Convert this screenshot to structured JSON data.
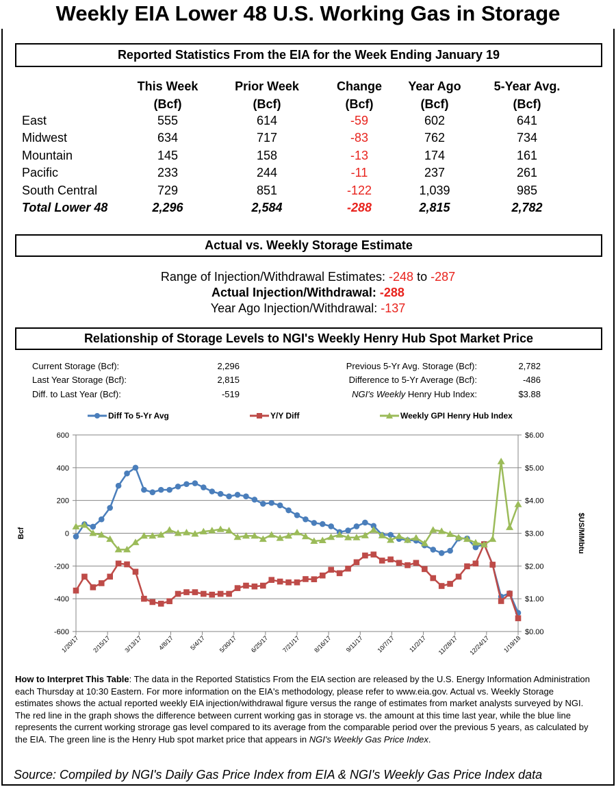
{
  "title": "Weekly EIA Lower 48 U.S. Working Gas in Storage",
  "section1": {
    "heading": "Reported Statistics From the EIA for the Week Ending January 19",
    "columns": [
      {
        "line1": "This Week",
        "line2": "(Bcf)"
      },
      {
        "line1": "Prior Week",
        "line2": "(Bcf)"
      },
      {
        "line1": "Change",
        "line2": "(Bcf)"
      },
      {
        "line1": "Year Ago",
        "line2": "(Bcf)"
      },
      {
        "line1": "5-Year Avg.",
        "line2": "(Bcf)"
      }
    ],
    "rows": [
      {
        "region": "East",
        "values": [
          "555",
          "614",
          "-59",
          "602",
          "641"
        ]
      },
      {
        "region": "Midwest",
        "values": [
          "634",
          "717",
          "-83",
          "762",
          "734"
        ]
      },
      {
        "region": "Mountain",
        "values": [
          "145",
          "158",
          "-13",
          "174",
          "161"
        ]
      },
      {
        "region": "Pacific",
        "values": [
          "233",
          "244",
          "-11",
          "237",
          "261"
        ]
      },
      {
        "region": "South Central",
        "values": [
          "729",
          "851",
          "-122",
          "1,039",
          "985"
        ]
      },
      {
        "region": "Total Lower 48",
        "values": [
          "2,296",
          "2,584",
          "-288",
          "2,815",
          "2,782"
        ]
      }
    ],
    "negative_color": "#e8231d"
  },
  "section2": {
    "heading": "Actual vs. Weekly Storage Estimate",
    "range_label": "Range of Injection/Withdrawal Estimates: ",
    "range_low": "-248",
    "range_to": " to ",
    "range_high": "-287",
    "actual_label": "Actual Injection/Withdrawal: ",
    "actual_value": "-288",
    "year_ago_label": "Year Ago Injection/Withdrawal: ",
    "year_ago_value": "-137"
  },
  "section3": {
    "heading": "Relationship of Storage Levels to NGI's Weekly Henry Hub Spot Market Price",
    "stats_left": [
      {
        "label": "Current Storage (Bcf):",
        "value": "2,296"
      },
      {
        "label": "Last Year Storage (Bcf):",
        "value": "2,815"
      },
      {
        "label": "Diff. to Last Year (Bcf):",
        "value": "-519"
      }
    ],
    "stats_right": [
      {
        "label": "Previous 5-Yr Avg. Storage (Bcf):",
        "value": "2,782"
      },
      {
        "label": "Difference to 5-Yr Average (Bcf):",
        "value": "-486"
      },
      {
        "label_italic": "NGI's Weekly",
        "label": " Henry Hub Index:",
        "value": "$3.88"
      }
    ]
  },
  "chart_data": {
    "type": "line",
    "legend_placement": "top",
    "grid": true,
    "xlabel": "",
    "ylabel": "Bcf",
    "y2label": "$US/MMbtu",
    "ylim": [
      -600,
      600
    ],
    "y_ticks": [
      "600",
      "400",
      "200",
      "0",
      "-200",
      "-400",
      "-600"
    ],
    "y2lim": [
      0,
      6
    ],
    "y2_ticks": [
      "$6.00",
      "$5.00",
      "$4.00",
      "$3.00",
      "$2.00",
      "$1.00",
      "$0.00"
    ],
    "x_tick_labels": [
      "1/20/17",
      "2/15/17",
      "3/13/17",
      "4/8/17",
      "5/4/17",
      "5/30/17",
      "6/25/17",
      "7/21/17",
      "8/16/17",
      "9/11/17",
      "10/7/17",
      "11/2/17",
      "11/28/17",
      "12/24/17",
      "1/19/18"
    ],
    "x_tick_dates": [
      "2017-01-20",
      "2017-02-15",
      "2017-03-13",
      "2017-04-08",
      "2017-05-04",
      "2017-05-30",
      "2017-06-25",
      "2017-07-21",
      "2017-08-16",
      "2017-09-11",
      "2017-10-07",
      "2017-11-02",
      "2017-11-28",
      "2017-12-24",
      "2018-01-19"
    ],
    "x": [
      "2017-01-20",
      "2017-01-27",
      "2017-02-03",
      "2017-02-10",
      "2017-02-17",
      "2017-02-24",
      "2017-03-03",
      "2017-03-10",
      "2017-03-17",
      "2017-03-24",
      "2017-03-31",
      "2017-04-07",
      "2017-04-14",
      "2017-04-21",
      "2017-04-28",
      "2017-05-05",
      "2017-05-12",
      "2017-05-19",
      "2017-05-26",
      "2017-06-02",
      "2017-06-09",
      "2017-06-16",
      "2017-06-23",
      "2017-06-30",
      "2017-07-07",
      "2017-07-14",
      "2017-07-21",
      "2017-07-28",
      "2017-08-04",
      "2017-08-11",
      "2017-08-18",
      "2017-08-25",
      "2017-09-01",
      "2017-09-08",
      "2017-09-15",
      "2017-09-22",
      "2017-09-29",
      "2017-10-06",
      "2017-10-13",
      "2017-10-20",
      "2017-10-27",
      "2017-11-03",
      "2017-11-10",
      "2017-11-17",
      "2017-11-24",
      "2017-12-01",
      "2017-12-08",
      "2017-12-15",
      "2017-12-22",
      "2017-12-29",
      "2018-01-05",
      "2018-01-12",
      "2018-01-19"
    ],
    "series": [
      {
        "name": "Diff To 5-Yr Avg",
        "axis": "left",
        "color": "#4a7ebb",
        "marker": "circle",
        "values": [
          -20,
          55,
          40,
          85,
          155,
          290,
          365,
          400,
          265,
          250,
          265,
          265,
          285,
          300,
          305,
          280,
          255,
          240,
          225,
          235,
          225,
          205,
          180,
          185,
          170,
          140,
          110,
          85,
          63,
          56,
          42,
          7,
          17,
          42,
          65,
          45,
          -10,
          -10,
          -35,
          -42,
          -45,
          -74,
          -100,
          -121,
          -107,
          -32,
          -32,
          -86,
          -65,
          -192,
          -387,
          -366,
          -486
        ]
      },
      {
        "name": "Y/Y Diff",
        "axis": "left",
        "color": "#be4b48",
        "marker": "square",
        "values": [
          -350,
          -265,
          -330,
          -305,
          -265,
          -185,
          -190,
          -235,
          -400,
          -420,
          -430,
          -415,
          -370,
          -360,
          -360,
          -370,
          -375,
          -370,
          -370,
          -335,
          -320,
          -325,
          -320,
          -285,
          -295,
          -300,
          -300,
          -280,
          -281,
          -258,
          -223,
          -244,
          -216,
          -177,
          -136,
          -130,
          -167,
          -160,
          -181,
          -195,
          -181,
          -219,
          -274,
          -322,
          -309,
          -265,
          -202,
          -185,
          -67,
          -192,
          -414,
          -369,
          -519
        ]
      },
      {
        "name": "Weekly GPI Henry Hub Index",
        "axis": "right",
        "color": "#9bbb59",
        "marker": "triangle",
        "values": [
          3.2,
          3.25,
          3.0,
          2.95,
          2.82,
          2.5,
          2.5,
          2.72,
          2.92,
          2.92,
          2.95,
          3.1,
          3.0,
          3.02,
          2.98,
          3.05,
          3.08,
          3.12,
          3.08,
          2.88,
          2.92,
          2.92,
          2.82,
          2.95,
          2.85,
          2.92,
          3.02,
          2.9,
          2.76,
          2.78,
          2.88,
          2.95,
          2.87,
          2.87,
          2.93,
          3.1,
          2.93,
          2.79,
          2.91,
          2.79,
          2.86,
          2.69,
          3.1,
          3.06,
          2.97,
          2.87,
          2.82,
          2.71,
          2.65,
          2.82,
          5.19,
          3.18,
          3.88
        ]
      }
    ]
  },
  "footer": {
    "interpret_label": "How to Interpret This Table",
    "interpret_text": ": The data in the Reported Statistics From the EIA section are released by the U.S. Energy Information Administration each Thursday at 10:30 Eastern. For more information on the EIA's methodology, please refer to www.eia.gov. Actual vs. Weekly Storage estimates shows the actual reported weekly EIA injection/withdrawal figure versus the range of estimates from market analysts surveyed by NGI. The red line in the graph shows the difference between current working gas in storage vs. the amount at this time last year, while the blue line represents the current working strorage gas level  compared to its average from the comparable period over the previous 5 years, as calculated by the EIA. The green line is the Henry Hub spot market price that appears in ",
    "interpret_italic": "NGI's Weekly Gas Price Index",
    "interpret_end": ".",
    "source": "Source: Compiled by NGI's Daily Gas Price Index from EIA & NGI's Weekly Gas Price Index data"
  }
}
